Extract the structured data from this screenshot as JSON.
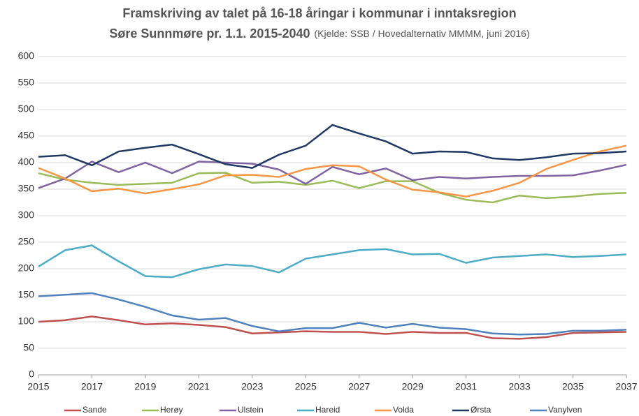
{
  "chart_data": {
    "type": "line",
    "title": [
      "Framskriving av talet på 16-18 åringar i kommunar i inntaksregion",
      "Søre Sunnmøre pr. 1.1. 2015-2040"
    ],
    "subtitle": "(Kjelde: SSB / Hovedalternativ MMMM, juni 2016)",
    "x": [
      2015,
      2016,
      2017,
      2018,
      2019,
      2020,
      2021,
      2022,
      2023,
      2024,
      2025,
      2026,
      2027,
      2028,
      2029,
      2030,
      2031,
      2032,
      2033,
      2034,
      2035,
      2036,
      2037
    ],
    "xlim": [
      2015,
      2037
    ],
    "xticks": [
      2015,
      2017,
      2019,
      2021,
      2023,
      2025,
      2027,
      2029,
      2031,
      2033,
      2035,
      2037
    ],
    "ylim": [
      0,
      600
    ],
    "yticks": [
      0,
      50,
      100,
      150,
      200,
      250,
      300,
      350,
      400,
      450,
      500,
      550,
      600
    ],
    "grid": true,
    "legend": "bottom",
    "series": [
      {
        "name": "Sande",
        "color": "#c0504d",
        "values": [
          100,
          103,
          110,
          103,
          95,
          97,
          94,
          90,
          78,
          80,
          82,
          81,
          81,
          77,
          81,
          79,
          79,
          69,
          68,
          71,
          79,
          80,
          81
        ]
      },
      {
        "name": "Herøy",
        "color": "#9bbb59",
        "values": [
          380,
          368,
          362,
          358,
          360,
          362,
          380,
          381,
          362,
          364,
          358,
          366,
          352,
          365,
          365,
          343,
          330,
          325,
          338,
          333,
          336,
          341,
          343
        ]
      },
      {
        "name": "Ulstein",
        "color": "#8064a2",
        "values": [
          352,
          370,
          402,
          382,
          400,
          380,
          402,
          400,
          398,
          387,
          360,
          392,
          378,
          389,
          367,
          373,
          370,
          373,
          375,
          375,
          376,
          385,
          396
        ]
      },
      {
        "name": "Hareid",
        "color": "#4bacc6",
        "values": [
          204,
          235,
          244,
          214,
          186,
          184,
          199,
          208,
          205,
          193,
          219,
          227,
          235,
          237,
          227,
          228,
          211,
          221,
          224,
          227,
          222,
          224,
          227
        ]
      },
      {
        "name": "Volda",
        "color": "#f79646",
        "values": [
          390,
          370,
          346,
          351,
          342,
          350,
          359,
          376,
          377,
          373,
          388,
          395,
          393,
          368,
          349,
          344,
          336,
          347,
          362,
          388,
          405,
          421,
          432
        ]
      },
      {
        "name": "Ørsta",
        "color": "#1f3864",
        "values": [
          411,
          414,
          395,
          421,
          428,
          434,
          416,
          397,
          390,
          415,
          432,
          471,
          455,
          440,
          417,
          421,
          420,
          408,
          405,
          410,
          417,
          418,
          421
        ]
      },
      {
        "name": "Vanylven",
        "color": "#4f81bd",
        "values": [
          148,
          151,
          154,
          142,
          128,
          112,
          104,
          107,
          92,
          82,
          88,
          88,
          98,
          89,
          96,
          89,
          86,
          78,
          76,
          77,
          83,
          83,
          85
        ]
      }
    ]
  }
}
